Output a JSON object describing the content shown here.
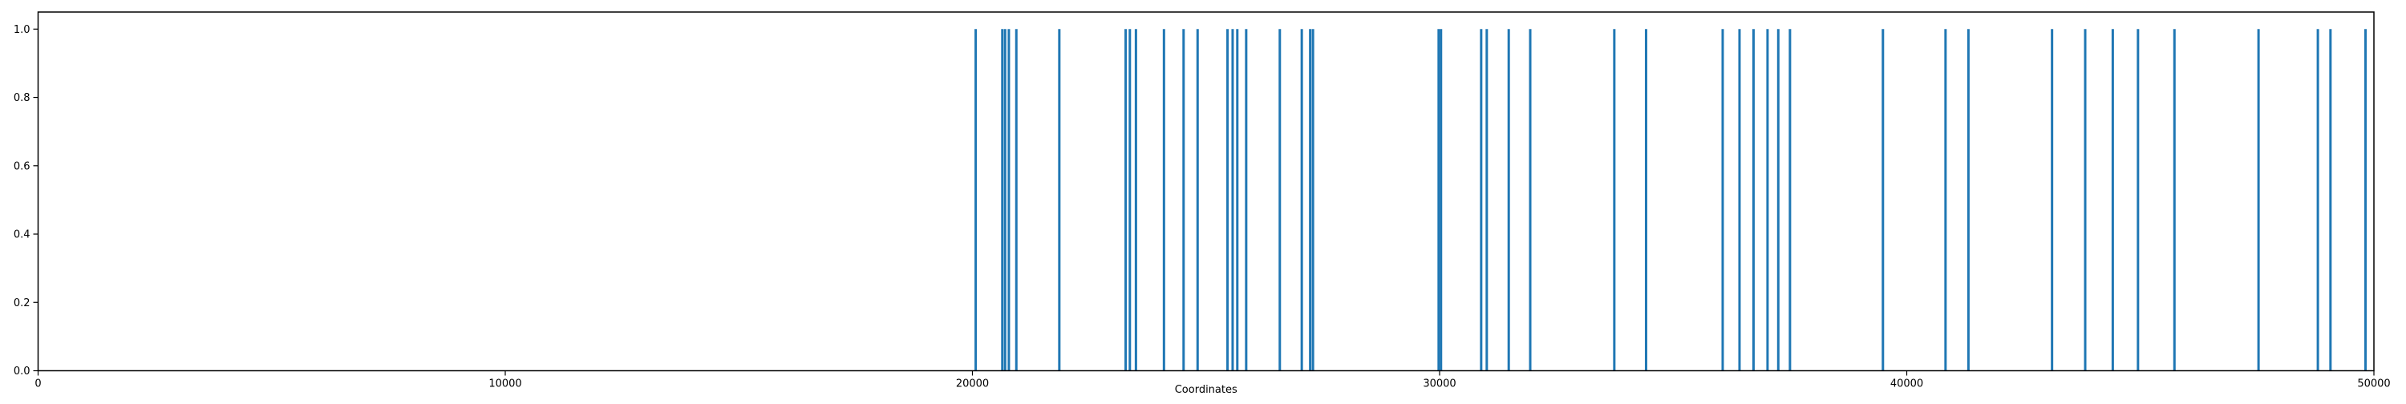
{
  "chart_data": {
    "type": "bar",
    "subtype": "event-lines",
    "title": "",
    "xlabel": "Coordinates",
    "ylabel": "",
    "xlim": [
      0,
      50000
    ],
    "ylim": [
      0,
      1.05
    ],
    "xticks": [
      0,
      10000,
      20000,
      30000,
      40000,
      50000
    ],
    "xtick_labels": [
      "0",
      "10000",
      "20000",
      "30000",
      "40000",
      "50000"
    ],
    "yticks": [
      0.0,
      0.2,
      0.4,
      0.6,
      0.8,
      1.0
    ],
    "ytick_labels": [
      "0.0",
      "0.2",
      "0.4",
      "0.6",
      "0.8",
      "1.0"
    ],
    "grid": false,
    "series": [
      {
        "color": "#1f77b4",
        "x": [
          20070,
          20640,
          20700,
          20780,
          20940,
          21860,
          23280,
          23370,
          23500,
          24100,
          24520,
          24820,
          25460,
          25570,
          25670,
          25860,
          26580,
          27050,
          27230,
          27290,
          29980,
          30030,
          30890,
          31010,
          31480,
          31940,
          33740,
          34420,
          36060,
          36420,
          36720,
          37020,
          37250,
          37500,
          39490,
          40830,
          41320,
          43110,
          43820,
          44410,
          44950,
          45730,
          47530,
          48800,
          49070,
          49820
        ],
        "y": [
          1,
          1,
          1,
          1,
          1,
          1,
          1,
          1,
          1,
          1,
          1,
          1,
          1,
          1,
          1,
          1,
          1,
          1,
          1,
          1,
          1,
          1,
          1,
          1,
          1,
          1,
          1,
          1,
          1,
          1,
          1,
          1,
          1,
          1,
          1,
          1,
          1,
          1,
          1,
          1,
          1,
          1,
          1,
          1,
          1,
          1
        ]
      }
    ]
  }
}
